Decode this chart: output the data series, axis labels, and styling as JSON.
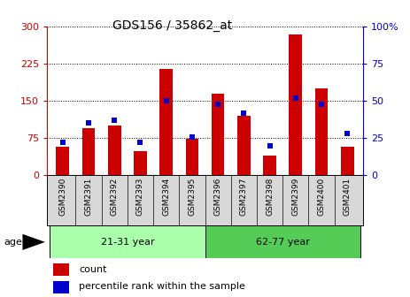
{
  "title": "GDS156 / 35862_at",
  "samples": [
    "GSM2390",
    "GSM2391",
    "GSM2392",
    "GSM2393",
    "GSM2394",
    "GSM2395",
    "GSM2396",
    "GSM2397",
    "GSM2398",
    "GSM2399",
    "GSM2400",
    "GSM2401"
  ],
  "counts": [
    58,
    95,
    100,
    48,
    215,
    73,
    165,
    120,
    40,
    285,
    175,
    58
  ],
  "percentiles": [
    22,
    35,
    37,
    22,
    50,
    26,
    48,
    42,
    20,
    52,
    48,
    28
  ],
  "groups": [
    {
      "label": "21-31 year",
      "start": 0,
      "end": 5
    },
    {
      "label": "62-77 year",
      "start": 6,
      "end": 11
    }
  ],
  "bar_color": "#cc0000",
  "percentile_color": "#0000cc",
  "group_color_1": "#aaffaa",
  "group_color_2": "#55cc55",
  "sample_bg_color": "#d8d8d8",
  "ylim_left": [
    0,
    300
  ],
  "ylim_right": [
    0,
    100
  ],
  "yticks_left": [
    0,
    75,
    150,
    225,
    300
  ],
  "yticks_right": [
    0,
    25,
    50,
    75,
    100
  ],
  "left_axis_color": "#cc0000",
  "right_axis_color": "#0000cc",
  "legend_count_label": "count",
  "legend_pct_label": "percentile rank within the sample",
  "age_label": "age"
}
